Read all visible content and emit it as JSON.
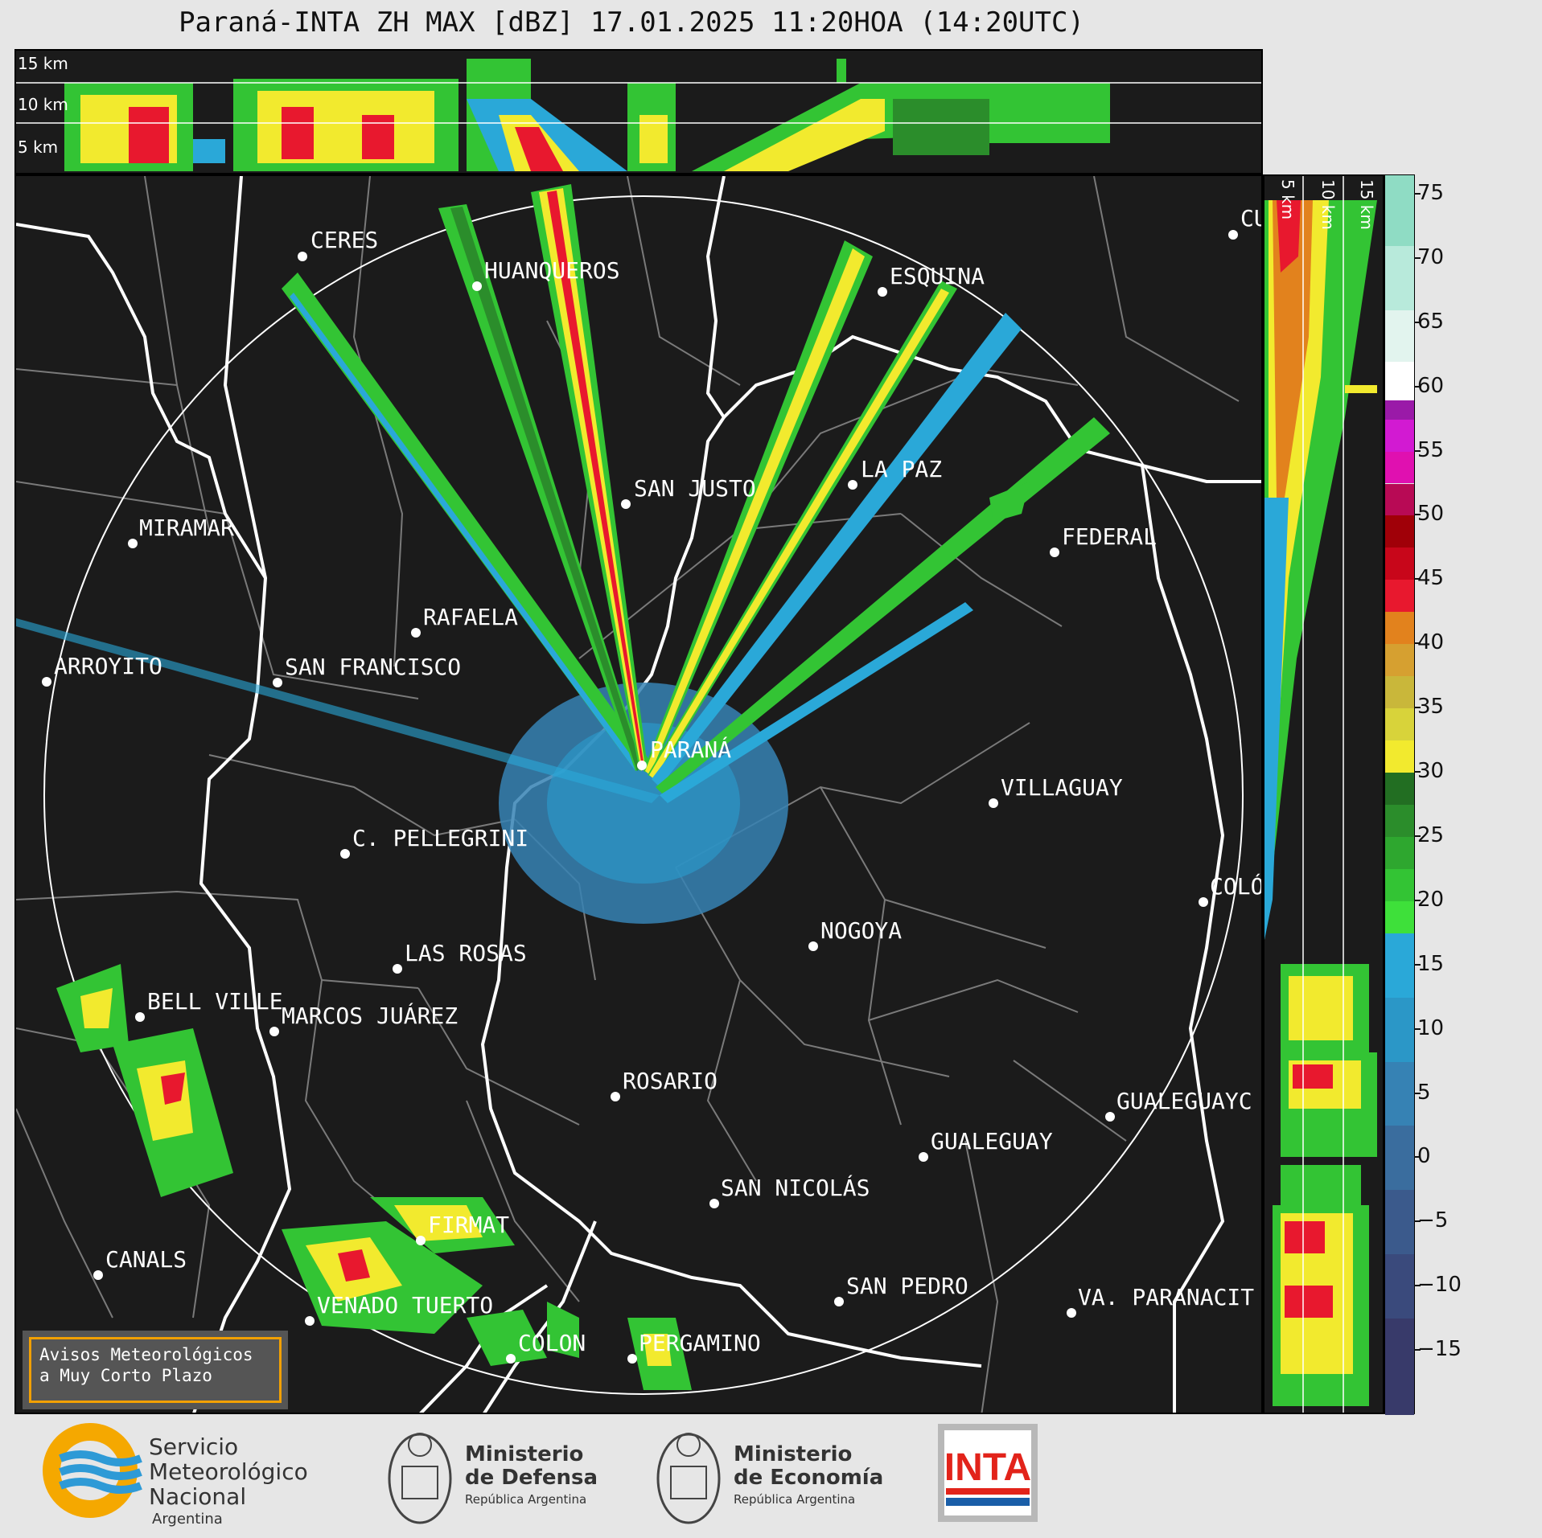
{
  "title": "Paraná-INTA ZH MAX [dBZ] 17.01.2025 11:20HOA (14:20UTC)",
  "top_panel": {
    "altitude_labels": [
      "15 km",
      "10 km",
      "5 km"
    ]
  },
  "right_panel": {
    "altitude_labels": [
      "5 km",
      "10 km",
      "15 km"
    ]
  },
  "cities": [
    {
      "name": "CERES"
    },
    {
      "name": "HUANQUEROS"
    },
    {
      "name": "ESQUINA"
    },
    {
      "name": "CU"
    },
    {
      "name": "SAN JUSTO"
    },
    {
      "name": "LA PAZ"
    },
    {
      "name": "MIRAMAR"
    },
    {
      "name": "FEDERAL"
    },
    {
      "name": "RAFAELA"
    },
    {
      "name": "ARROYITO"
    },
    {
      "name": "SAN FRANCISCO"
    },
    {
      "name": "PARANÁ"
    },
    {
      "name": "VILLAGUAY"
    },
    {
      "name": "C. PELLEGRINI"
    },
    {
      "name": "COLÓ"
    },
    {
      "name": "NOGOYA"
    },
    {
      "name": "LAS ROSAS"
    },
    {
      "name": "BELL VILLE"
    },
    {
      "name": "MARCOS JUÁREZ"
    },
    {
      "name": "ROSARIO"
    },
    {
      "name": "GUALEGUAYC"
    },
    {
      "name": "GUALEGUAY"
    },
    {
      "name": "SAN NICOLÁS"
    },
    {
      "name": "FIRMAT"
    },
    {
      "name": "CANALS"
    },
    {
      "name": "SAN PEDRO"
    },
    {
      "name": "VENADO TUERTO"
    },
    {
      "name": "VA. PARANACIT"
    },
    {
      "name": "COLON"
    },
    {
      "name": "PERGAMINO"
    }
  ],
  "colorbar": {
    "ticks": [
      "75",
      "70",
      "65",
      "60",
      "55",
      "50",
      "45",
      "40",
      "35",
      "30",
      "25",
      "20",
      "15",
      "10",
      "5",
      "0",
      "−5",
      "−10",
      "−15"
    ],
    "range": [
      -20,
      76.5
    ],
    "stops": [
      {
        "from": -20,
        "color": "#383a6a"
      },
      {
        "from": -12.5,
        "color": "#3a4a7c"
      },
      {
        "from": -7.5,
        "color": "#3b5a8c"
      },
      {
        "from": -2.5,
        "color": "#3a6d9e"
      },
      {
        "from": 2.5,
        "color": "#3682b4"
      },
      {
        "from": 7.5,
        "color": "#2b97c7"
      },
      {
        "from": 12.5,
        "color": "#2aa8d8"
      },
      {
        "from": 17.5,
        "color": "#3ee03a"
      },
      {
        "from": 20,
        "color": "#33c434"
      },
      {
        "from": 22.5,
        "color": "#2ea72f"
      },
      {
        "from": 25,
        "color": "#2b8d2b"
      },
      {
        "from": 27.5,
        "color": "#226e22"
      },
      {
        "from": 30,
        "color": "#f2ea2e"
      },
      {
        "from": 32.5,
        "color": "#d8d33a"
      },
      {
        "from": 35,
        "color": "#c9b73a"
      },
      {
        "from": 37.5,
        "color": "#d6a030"
      },
      {
        "from": 40,
        "color": "#e2821d"
      },
      {
        "from": 42.5,
        "color": "#e8182e"
      },
      {
        "from": 45,
        "color": "#c8061a"
      },
      {
        "from": 47.5,
        "color": "#a00008"
      },
      {
        "from": 50,
        "color": "#b80a55"
      },
      {
        "from": 52.5,
        "color": "#e010b0"
      },
      {
        "from": 55,
        "color": "#d21ad2"
      },
      {
        "from": 57.5,
        "color": "#9a1aa8"
      },
      {
        "from": 59,
        "color": "#ffffff"
      },
      {
        "from": 62,
        "color": "#e2f4ee"
      },
      {
        "from": 66,
        "color": "#b8eadb"
      },
      {
        "from": 71,
        "color": "#8fdcc4"
      }
    ]
  },
  "warning": {
    "line1": "Avisos Meteorológicos",
    "line2": "a Muy Corto Plazo"
  },
  "footer": {
    "smn": {
      "line1": "Servicio",
      "line2": "Meteorológico",
      "line3": "Nacional",
      "line4": "Argentina"
    },
    "defensa": {
      "line1": "Ministerio",
      "line2": "de Defensa",
      "line3": "República Argentina"
    },
    "economia": {
      "line1": "Ministerio",
      "line2": "de Economía",
      "line3": "República Argentina"
    },
    "inta": {
      "text": "INTA"
    }
  }
}
